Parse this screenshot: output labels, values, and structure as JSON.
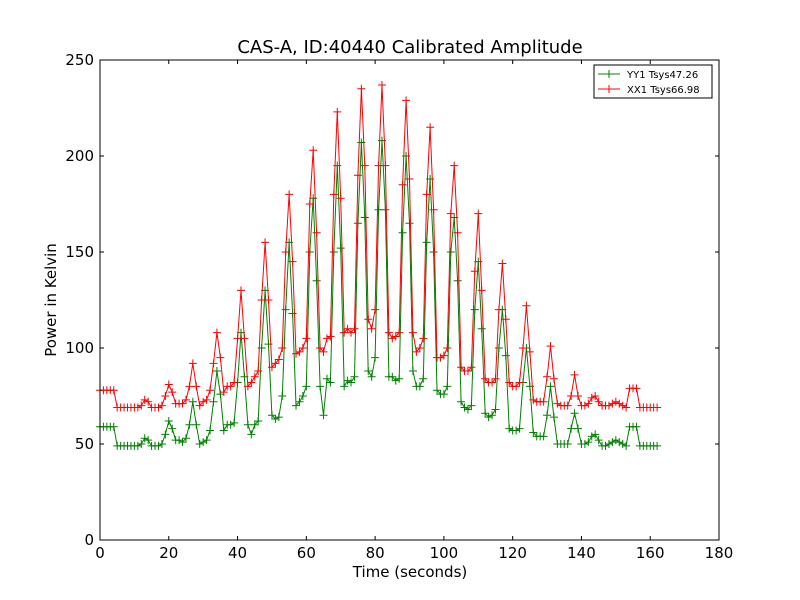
{
  "chart_data": {
    "type": "line",
    "title": "CAS-A, ID:40440 Calibrated Amplitude",
    "xlabel": "Time (seconds)",
    "ylabel": "Power in Kelvin",
    "xlim": [
      0,
      180
    ],
    "ylim": [
      0,
      250
    ],
    "xticks": [
      0,
      20,
      40,
      60,
      80,
      100,
      120,
      140,
      160,
      180
    ],
    "yticks": [
      0,
      50,
      100,
      150,
      200,
      250
    ],
    "grid": false,
    "legend_position": "top-right",
    "marker": "plus",
    "series": [
      {
        "name": "YY1 Tsys47.26",
        "color": "#008000",
        "x": [
          0,
          1,
          2,
          3,
          4,
          5,
          6,
          7,
          8,
          9,
          10,
          11,
          12,
          13,
          14,
          15,
          16,
          17,
          18,
          19,
          20,
          21,
          22,
          23,
          24,
          25,
          26,
          27,
          28,
          29,
          30,
          31,
          32,
          33,
          34,
          35,
          36,
          37,
          38,
          39,
          40,
          41,
          42,
          43,
          44,
          45,
          46,
          47,
          48,
          49,
          50,
          51,
          52,
          53,
          54,
          55,
          56,
          57,
          58,
          59,
          60,
          61,
          62,
          63,
          64,
          65,
          66,
          67,
          68,
          69,
          70,
          71,
          72,
          73,
          74,
          75,
          76,
          77,
          78,
          79,
          80,
          81,
          82,
          83,
          84,
          85,
          86,
          87,
          88,
          89,
          90,
          91,
          92,
          93,
          94,
          95,
          96,
          97,
          98,
          99,
          100,
          101,
          102,
          103,
          104,
          105,
          106,
          107,
          108,
          109,
          110,
          111,
          112,
          113,
          114,
          115,
          116,
          117,
          118,
          119,
          120,
          121,
          122,
          123,
          124,
          125,
          126,
          127,
          128,
          129,
          130,
          131,
          132,
          133,
          134,
          135,
          136,
          137,
          138,
          139,
          140,
          141,
          142,
          143,
          144,
          145,
          146,
          147,
          148,
          149,
          150,
          151,
          152,
          153,
          154,
          155,
          156,
          157,
          158,
          159,
          160,
          161,
          162
        ],
        "y": [
          59,
          59,
          59,
          59,
          59,
          49,
          49,
          49,
          49,
          49,
          49,
          49,
          50,
          53,
          52,
          49,
          49,
          49,
          50,
          55,
          62,
          58,
          52,
          52,
          51,
          53,
          60,
          72,
          60,
          50,
          51,
          52,
          57,
          72,
          88,
          76,
          57,
          60,
          60,
          61,
          82,
          108,
          85,
          60,
          55,
          60,
          62,
          100,
          130,
          102,
          65,
          63,
          64,
          75,
          120,
          155,
          118,
          70,
          72,
          75,
          80,
          150,
          178,
          135,
          80,
          65,
          84,
          82,
          150,
          195,
          152,
          80,
          83,
          82,
          85,
          165,
          207,
          168,
          88,
          85,
          95,
          172,
          208,
          172,
          85,
          85,
          83,
          84,
          160,
          200,
          165,
          88,
          80,
          80,
          84,
          155,
          188,
          150,
          78,
          76,
          76,
          80,
          150,
          168,
          135,
          72,
          69,
          68,
          70,
          120,
          145,
          110,
          66,
          64,
          65,
          68,
          100,
          120,
          96,
          58,
          57,
          57,
          58,
          82,
          100,
          80,
          56,
          54,
          54,
          54,
          65,
          80,
          64,
          50,
          50,
          50,
          50,
          58,
          66,
          58,
          50,
          50,
          51,
          54,
          55,
          52,
          49,
          49,
          50,
          51,
          52,
          51,
          50,
          49,
          59,
          59,
          59,
          49,
          49,
          49,
          49,
          49,
          49
        ]
      },
      {
        "name": "XX1 Tsys66.98",
        "color": "#ff0000",
        "x": [
          0,
          1,
          2,
          3,
          4,
          5,
          6,
          7,
          8,
          9,
          10,
          11,
          12,
          13,
          14,
          15,
          16,
          17,
          18,
          19,
          20,
          21,
          22,
          23,
          24,
          25,
          26,
          27,
          28,
          29,
          30,
          31,
          32,
          33,
          34,
          35,
          36,
          37,
          38,
          39,
          40,
          41,
          42,
          43,
          44,
          45,
          46,
          47,
          48,
          49,
          50,
          51,
          52,
          53,
          54,
          55,
          56,
          57,
          58,
          59,
          60,
          61,
          62,
          63,
          64,
          65,
          66,
          67,
          68,
          69,
          70,
          71,
          72,
          73,
          74,
          75,
          76,
          77,
          78,
          79,
          80,
          81,
          82,
          83,
          84,
          85,
          86,
          87,
          88,
          89,
          90,
          91,
          92,
          93,
          94,
          95,
          96,
          97,
          98,
          99,
          100,
          101,
          102,
          103,
          104,
          105,
          106,
          107,
          108,
          109,
          110,
          111,
          112,
          113,
          114,
          115,
          116,
          117,
          118,
          119,
          120,
          121,
          122,
          123,
          124,
          125,
          126,
          127,
          128,
          129,
          130,
          131,
          132,
          133,
          134,
          135,
          136,
          137,
          138,
          139,
          140,
          141,
          142,
          143,
          144,
          145,
          146,
          147,
          148,
          149,
          150,
          151,
          152,
          153,
          154,
          155,
          156,
          157,
          158,
          159,
          160,
          161,
          162
        ],
        "y": [
          78,
          78,
          78,
          78,
          78,
          69,
          69,
          69,
          69,
          69,
          69,
          69,
          70,
          73,
          72,
          69,
          69,
          69,
          70,
          75,
          81,
          77,
          71,
          71,
          71,
          73,
          80,
          92,
          80,
          70,
          72,
          73,
          78,
          92,
          108,
          95,
          77,
          80,
          80,
          82,
          105,
          130,
          105,
          80,
          82,
          85,
          88,
          125,
          155,
          125,
          90,
          92,
          94,
          100,
          150,
          180,
          145,
          97,
          98,
          100,
          105,
          175,
          203,
          160,
          100,
          98,
          105,
          106,
          180,
          223,
          178,
          108,
          110,
          108,
          110,
          190,
          235,
          195,
          115,
          110,
          120,
          195,
          237,
          195,
          108,
          105,
          106,
          108,
          185,
          229,
          188,
          108,
          98,
          100,
          105,
          180,
          215,
          172,
          95,
          95,
          96,
          100,
          170,
          195,
          160,
          90,
          88,
          88,
          90,
          140,
          170,
          130,
          84,
          82,
          82,
          84,
          120,
          144,
          115,
          82,
          80,
          80,
          82,
          100,
          122,
          98,
          73,
          72,
          72,
          72,
          85,
          101,
          84,
          71,
          70,
          70,
          70,
          75,
          86,
          75,
          70,
          70,
          71,
          74,
          75,
          72,
          70,
          70,
          70,
          71,
          72,
          71,
          70,
          69,
          79,
          79,
          79,
          69,
          69,
          69,
          69,
          69,
          69
        ]
      }
    ]
  }
}
